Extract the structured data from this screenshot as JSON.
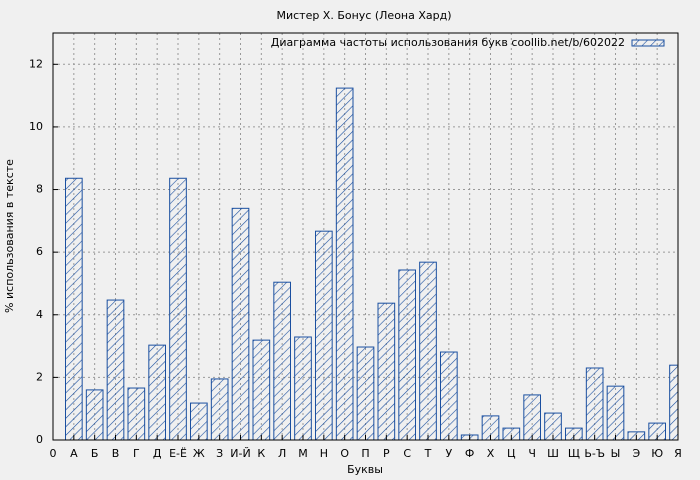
{
  "chart_data": {
    "type": "bar",
    "title": "Мистер Х. Бонус (Леона Хард)",
    "x_label": "Буквы",
    "y_label": "% использования в тексте",
    "x": [
      1,
      2,
      3,
      4,
      5,
      6,
      7,
      8,
      9,
      10,
      11,
      12,
      13,
      14,
      15,
      16,
      17,
      18,
      19,
      20,
      21,
      22,
      23,
      24,
      25,
      26,
      27,
      28,
      29,
      30
    ],
    "series": [
      {
        "name": "Диаграмма частоты использования букв coollib.net/b/602022",
        "color": "#1a4fa0",
        "values": [
          8.36,
          1.6,
          4.47,
          1.66,
          3.03,
          8.36,
          1.18,
          1.95,
          7.4,
          3.19,
          5.04,
          3.29,
          6.67,
          11.24,
          2.97,
          4.37,
          5.43,
          5.68,
          2.81,
          0.16,
          0.77,
          0.38,
          1.44,
          0.86,
          0.38,
          2.3,
          1.72,
          0.26,
          0.54,
          2.39
        ]
      }
    ],
    "xlim": [
      0,
      30
    ],
    "xticks": [
      0,
      {
        "value": 1,
        "label": "А"
      },
      {
        "value": 2,
        "label": "Б"
      },
      {
        "value": 3,
        "label": "В"
      },
      {
        "value": 4,
        "label": "Г"
      },
      {
        "value": 5,
        "label": "Д"
      },
      {
        "value": 6,
        "label": "Е-Ё"
      },
      {
        "value": 7,
        "label": "Ж"
      },
      {
        "value": 8,
        "label": "З"
      },
      {
        "value": 9,
        "label": "И-Й"
      },
      {
        "value": 10,
        "label": "К"
      },
      {
        "value": 11,
        "label": "Л"
      },
      {
        "value": 12,
        "label": "М"
      },
      {
        "value": 13,
        "label": "Н"
      },
      {
        "value": 14,
        "label": "О"
      },
      {
        "value": 15,
        "label": "П"
      },
      {
        "value": 16,
        "label": "Р"
      },
      {
        "value": 17,
        "label": "С"
      },
      {
        "value": 18,
        "label": "Т"
      },
      {
        "value": 19,
        "label": "У"
      },
      {
        "value": 20,
        "label": "Ф"
      },
      {
        "value": 21,
        "label": "Х"
      },
      {
        "value": 22,
        "label": "Ц"
      },
      {
        "value": 23,
        "label": "Ч"
      },
      {
        "value": 24,
        "label": "Ш"
      },
      {
        "value": 25,
        "label": "Щ"
      },
      {
        "value": 26,
        "label": "Ь-Ъ"
      },
      {
        "value": 27,
        "label": "Ы"
      },
      {
        "value": 28,
        "label": "Э"
      },
      {
        "value": 29,
        "label": "Ю"
      },
      {
        "value": 30,
        "label": "Я"
      }
    ],
    "ylim": [
      0,
      13
    ],
    "yticks": [
      0,
      2,
      4,
      6,
      8,
      10,
      12
    ],
    "grid": true,
    "legend": "top-right"
  }
}
